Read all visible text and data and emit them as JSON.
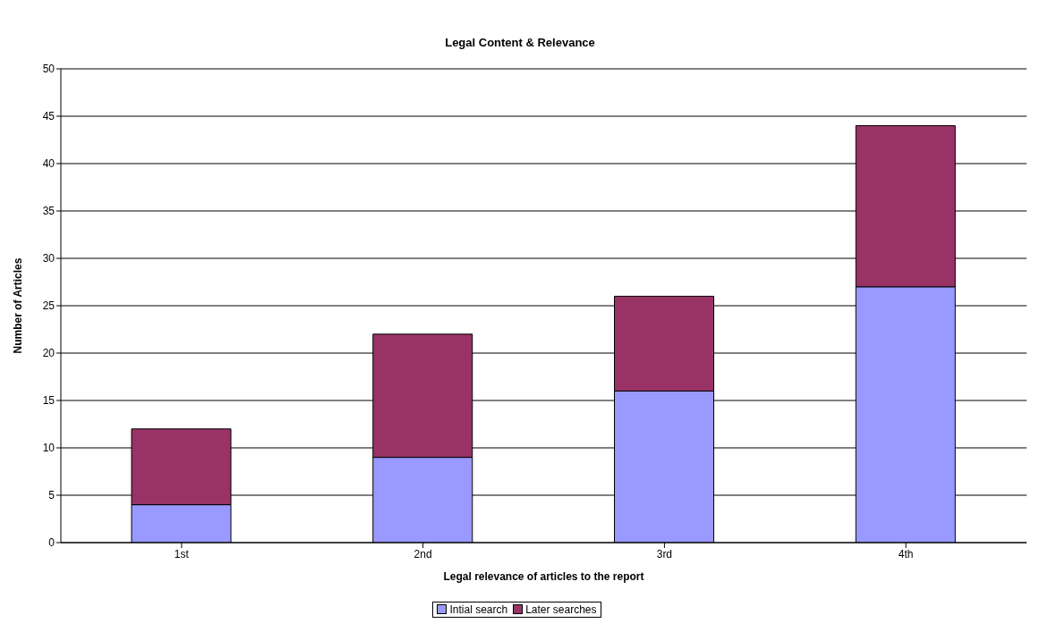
{
  "chart_data": {
    "type": "bar",
    "title": "Legal Content &  Relevance",
    "xlabel": "Legal relevance of articles to the report",
    "ylabel": "Number of Articles",
    "categories": [
      "1st",
      "2nd",
      "3rd",
      "4th"
    ],
    "series": [
      {
        "name": "Intial search",
        "color": "#9999ff",
        "values": [
          4,
          9,
          16,
          27
        ]
      },
      {
        "name": "Later searches",
        "color": "#993366",
        "values": [
          8,
          13,
          10,
          17
        ]
      }
    ],
    "stacked": true,
    "ylim": [
      0,
      50
    ],
    "yticks": [
      0,
      5,
      10,
      15,
      20,
      25,
      30,
      35,
      40,
      45,
      50
    ],
    "grid": "y",
    "legend": "bottom"
  }
}
